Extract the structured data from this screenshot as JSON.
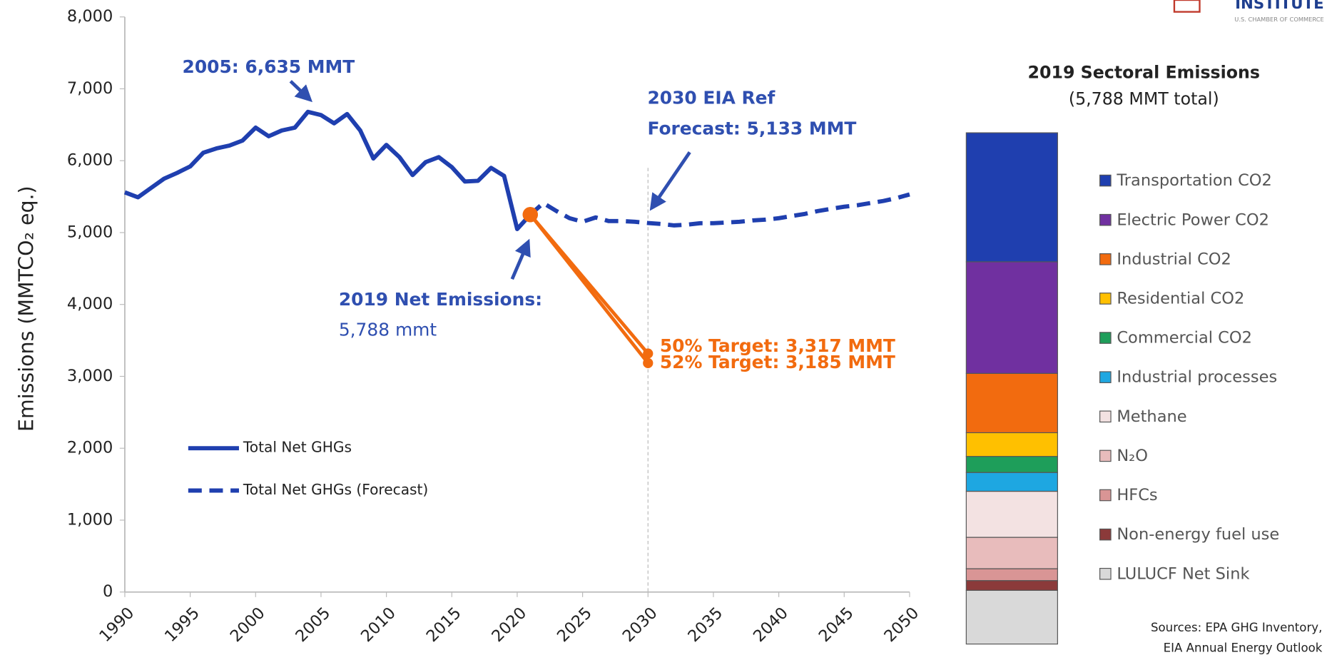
{
  "chart_data": [
    {
      "type": "line",
      "ylabel": "Emissions (MMTCO₂ eq.)",
      "x": [
        1990,
        1991,
        1992,
        1993,
        1994,
        1995,
        1996,
        1997,
        1998,
        1999,
        2000,
        2001,
        2002,
        2003,
        2004,
        2005,
        2006,
        2007,
        2008,
        2009,
        2010,
        2011,
        2012,
        2013,
        2014,
        2015,
        2016,
        2017,
        2018,
        2019,
        2020,
        2021,
        2022,
        2023,
        2024,
        2025,
        2026,
        2027,
        2028,
        2029,
        2030,
        2031,
        2032,
        2033,
        2034,
        2035,
        2036,
        2037,
        2038,
        2039,
        2040,
        2041,
        2042,
        2043,
        2044,
        2045,
        2046,
        2047,
        2048,
        2049,
        2050
      ],
      "series": [
        {
          "name": "Total Net GHGs",
          "color": "#1f3faf",
          "dashed": false,
          "values": [
            5560,
            5490,
            5620,
            5750,
            5830,
            5920,
            6110,
            6170,
            6210,
            6280,
            6460,
            6340,
            6420,
            6460,
            6680,
            6635,
            6520,
            6650,
            6420,
            6030,
            6220,
            6050,
            5800,
            5980,
            6050,
            5910,
            5710,
            5720,
            5900,
            5788,
            5050,
            5250,
            null,
            null,
            null,
            null,
            null,
            null,
            null,
            null,
            null,
            null,
            null,
            null,
            null,
            null,
            null,
            null,
            null,
            null,
            null,
            null,
            null,
            null,
            null,
            null,
            null,
            null,
            null,
            null,
            null
          ]
        },
        {
          "name": "Total Net GHGs (Forecast)",
          "color": "#1f3faf",
          "dashed": true,
          "values": [
            null,
            null,
            null,
            null,
            null,
            null,
            null,
            null,
            null,
            null,
            null,
            null,
            null,
            null,
            null,
            null,
            null,
            null,
            null,
            null,
            null,
            null,
            null,
            null,
            null,
            null,
            null,
            null,
            null,
            null,
            null,
            5250,
            5410,
            5300,
            5200,
            5150,
            5210,
            5160,
            5160,
            5150,
            5133,
            5120,
            5100,
            5110,
            5130,
            5130,
            5140,
            5150,
            5170,
            5180,
            5200,
            5230,
            5260,
            5300,
            5330,
            5360,
            5380,
            5410,
            5440,
            5480,
            5530
          ]
        }
      ],
      "targets": [
        {
          "label": "50% Target: 3,317 MMT",
          "color": "#f26b0f",
          "x": [
            2021,
            2030
          ],
          "values": [
            5250,
            3317
          ]
        },
        {
          "label": "52% Target: 3,185 MMT",
          "color": "#f26b0f",
          "x": [
            2021,
            2030
          ],
          "values": [
            5250,
            3185
          ]
        }
      ],
      "vline_x": 2030,
      "annotations": [
        {
          "lines": [
            "2005: 6,635 MMT"
          ],
          "color": "#2f4fb0"
        },
        {
          "lines": [
            "2030 EIA Ref",
            "Forecast: 5,133 MMT"
          ],
          "color": "#2f4fb0"
        },
        {
          "lines": [
            "2019 Net Emissions:",
            "5,788 mmt"
          ],
          "color": "#2f4fb0"
        }
      ],
      "xlim": [
        1990,
        2050
      ],
      "xticks": [
        1990,
        1995,
        2000,
        2005,
        2010,
        2015,
        2020,
        2025,
        2030,
        2035,
        2040,
        2045,
        2050
      ],
      "ylim": [
        0,
        8000
      ],
      "yticks": [
        0,
        {
          "value": 1000,
          "label": "1,000"
        },
        {
          "value": 2000,
          "label": "2,000"
        },
        {
          "value": 3000,
          "label": "3,000"
        },
        {
          "value": 4000,
          "label": "4,000"
        },
        {
          "value": 5000,
          "label": "5,000"
        },
        {
          "value": 6000,
          "label": "6,000"
        },
        {
          "value": 7000,
          "label": "7,000"
        },
        {
          "value": 8000,
          "label": "8,000"
        }
      ],
      "grid": false
    },
    {
      "type": "stacked-bar",
      "title": "2019 Sectoral Emissions",
      "subtitle": "(5,788 MMT total)",
      "series": [
        {
          "name": "Transportation CO2",
          "color": "#1f3faf",
          "values": [
            1850
          ]
        },
        {
          "name": "Electric Power CO2",
          "color": "#7030a0",
          "values": [
            1600
          ]
        },
        {
          "name": "Industrial CO2",
          "color": "#f26b0f",
          "values": [
            850
          ]
        },
        {
          "name": "Residential CO2",
          "color": "#ffc000",
          "values": [
            340
          ]
        },
        {
          "name": "Commercial CO2",
          "color": "#1e9e5a",
          "values": [
            230
          ]
        },
        {
          "name": "Industrial processes",
          "color": "#1ea7e1",
          "values": [
            270
          ]
        },
        {
          "name": "Methane",
          "color": "#f3e2e2",
          "values": [
            660
          ]
        },
        {
          "name": "N₂O",
          "color": "#e8bcbc",
          "values": [
            450
          ]
        },
        {
          "name": "HFCs",
          "color": "#d99595",
          "values": [
            170
          ]
        },
        {
          "name": "Non-energy fuel use",
          "color": "#8b3a3a",
          "values": [
            140
          ]
        },
        {
          "name": "LULUCF Net Sink",
          "color": "#d9d9d9",
          "values": [
            -770
          ]
        }
      ]
    }
  ],
  "logo": {
    "name": "INSTITUTE",
    "tagline": "U.S. CHAMBER OF COMMERCE"
  },
  "sources": [
    "Sources: EPA GHG Inventory,",
    "EIA Annual Energy Outlook"
  ]
}
